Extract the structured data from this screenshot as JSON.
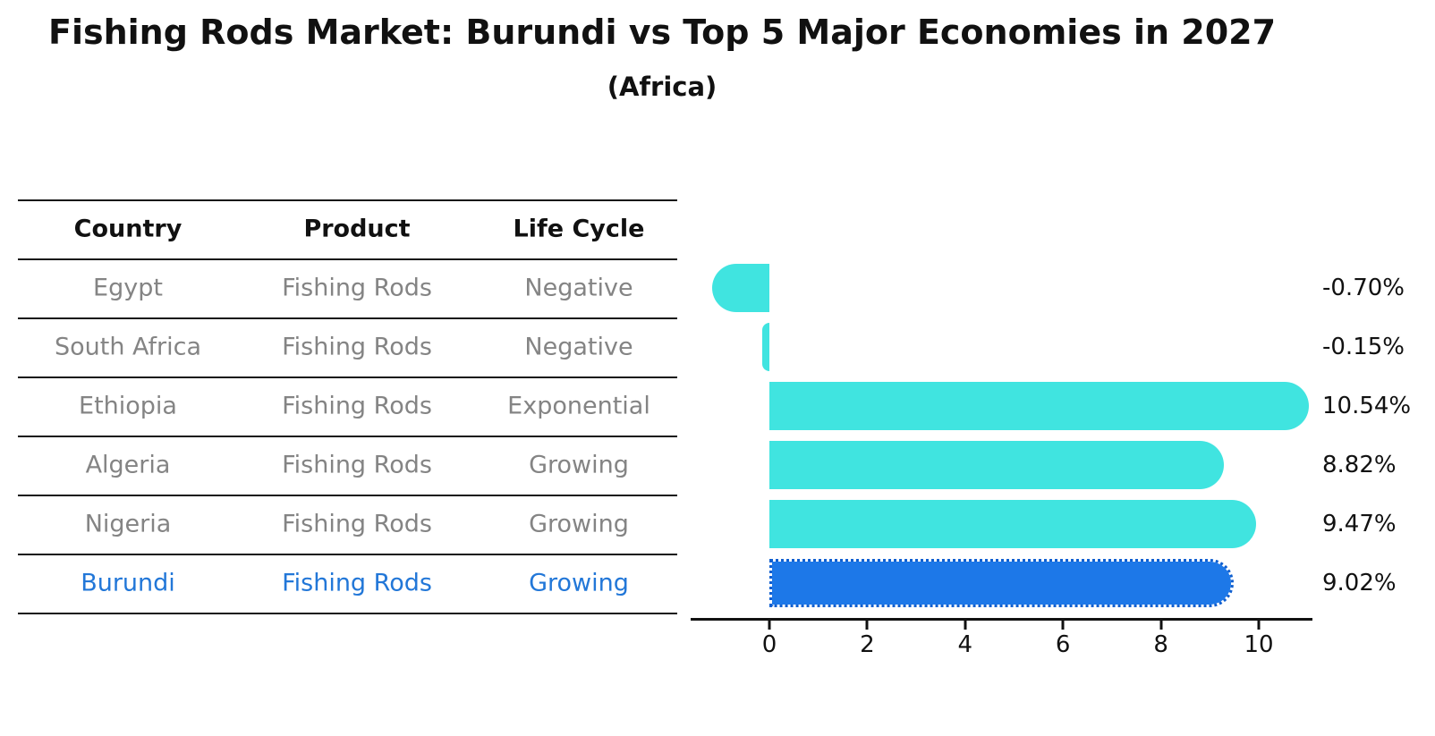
{
  "title": "Fishing Rods Market: Burundi vs Top 5 Major Economies in 2027",
  "subtitle": "(Africa)",
  "table": {
    "headers": [
      "Country",
      "Product",
      "Life Cycle"
    ],
    "rows": [
      {
        "country": "Egypt",
        "product": "Fishing Rods",
        "life_cycle": "Negative"
      },
      {
        "country": "South Africa",
        "product": "Fishing Rods",
        "life_cycle": "Negative"
      },
      {
        "country": "Ethiopia",
        "product": "Fishing Rods",
        "life_cycle": "Exponential"
      },
      {
        "country": "Algeria",
        "product": "Fishing Rods",
        "life_cycle": "Growing"
      },
      {
        "country": "Nigeria",
        "product": "Fishing Rods",
        "life_cycle": "Growing"
      },
      {
        "country": "Burundi",
        "product": "Fishing Rods",
        "life_cycle": "Growing"
      }
    ],
    "highlight_row": "Burundi"
  },
  "chart_data": {
    "type": "bar",
    "orientation": "horizontal",
    "title": "Fishing Rods Market: Burundi vs Top 5 Major Economies in 2027",
    "subtitle": "(Africa)",
    "categories": [
      "Egypt",
      "South Africa",
      "Ethiopia",
      "Algeria",
      "Nigeria",
      "Burundi"
    ],
    "values": [
      -0.7,
      -0.15,
      10.54,
      8.82,
      9.47,
      9.02
    ],
    "value_labels": [
      "-0.70%",
      "-0.15%",
      "10.54%",
      "8.82%",
      "9.47%",
      "9.02%"
    ],
    "unit": "percent",
    "x_ticks": [
      0,
      2,
      4,
      6,
      8,
      10
    ],
    "xlim": [
      -1.6,
      11.1
    ],
    "grid": false,
    "legend": false,
    "bar_color": "#40e4e0",
    "highlight_color": "#1d78e8",
    "highlight_index": 5,
    "highlight_category": "Burundi",
    "text_color": "#111111",
    "table_text_color": "#848484",
    "highlight_text_color": "#2277d8"
  }
}
